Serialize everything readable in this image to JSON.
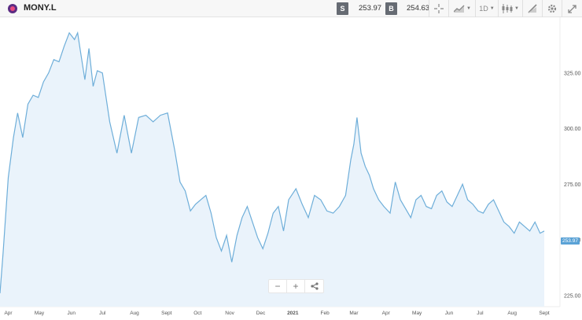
{
  "toolbar": {
    "symbol": "MONY.L",
    "sell_label": "S",
    "sell_price": "253.97",
    "buy_label": "B",
    "buy_price": "254.63",
    "icons": [
      "crosshair-icon",
      "chart-type-icon",
      "timeframe-select",
      "candles-icon",
      "draw-icon",
      "settings-icon",
      "fullscreen-icon"
    ],
    "timeframe": "1D"
  },
  "current_price_tag": "253.97",
  "colors": {
    "line": "#6eaed9",
    "fill": "#eaf3fb",
    "badge": "#666b73",
    "tag": "#5aa2d6"
  },
  "zoom_controls": {
    "minus": "−",
    "plus": "+",
    "share_icon": "share-icon"
  },
  "chart_data": {
    "type": "area",
    "title": "",
    "xlabel": "",
    "ylabel": "",
    "ylim": [
      220,
      350
    ],
    "y_ticks": [
      "325.00",
      "300.00",
      "275.00",
      "250.00",
      "225.00"
    ],
    "x_ticks": [
      "Apr",
      "May",
      "Jun",
      "Jul",
      "Aug",
      "Sept",
      "Oct",
      "Nov",
      "Dec",
      "2021",
      "Feb",
      "Mar",
      "Apr",
      "May",
      "Jun",
      "Jul",
      "Aug",
      "Sept"
    ],
    "x": [
      "2020-03-24",
      "2020-03-27",
      "2020-04-01",
      "2020-04-06",
      "2020-04-10",
      "2020-04-15",
      "2020-04-20",
      "2020-04-25",
      "2020-04-30",
      "2020-05-05",
      "2020-05-10",
      "2020-05-15",
      "2020-05-20",
      "2020-05-25",
      "2020-05-30",
      "2020-06-04",
      "2020-06-07",
      "2020-06-10",
      "2020-06-14",
      "2020-06-18",
      "2020-06-22",
      "2020-06-26",
      "2020-07-01",
      "2020-07-08",
      "2020-07-15",
      "2020-07-22",
      "2020-07-29",
      "2020-08-05",
      "2020-08-12",
      "2020-08-19",
      "2020-08-26",
      "2020-09-02",
      "2020-09-09",
      "2020-09-14",
      "2020-09-19",
      "2020-09-24",
      "2020-09-29",
      "2020-10-04",
      "2020-10-09",
      "2020-10-14",
      "2020-10-19",
      "2020-10-24",
      "2020-10-29",
      "2020-11-03",
      "2020-11-08",
      "2020-11-13",
      "2020-11-18",
      "2020-11-23",
      "2020-11-28",
      "2020-12-03",
      "2020-12-08",
      "2020-12-13",
      "2020-12-18",
      "2020-12-23",
      "2020-12-28",
      "2021-01-04",
      "2021-01-10",
      "2021-01-16",
      "2021-01-22",
      "2021-01-28",
      "2021-02-03",
      "2021-02-09",
      "2021-02-15",
      "2021-02-21",
      "2021-02-26",
      "2021-03-01",
      "2021-03-04",
      "2021-03-08",
      "2021-03-12",
      "2021-03-16",
      "2021-03-20",
      "2021-03-25",
      "2021-03-30",
      "2021-04-05",
      "2021-04-10",
      "2021-04-15",
      "2021-04-20",
      "2021-04-25",
      "2021-04-30",
      "2021-05-05",
      "2021-05-10",
      "2021-05-15",
      "2021-05-20",
      "2021-05-25",
      "2021-05-30",
      "2021-06-04",
      "2021-06-09",
      "2021-06-14",
      "2021-06-19",
      "2021-06-24",
      "2021-06-29",
      "2021-07-04",
      "2021-07-09",
      "2021-07-14",
      "2021-07-19",
      "2021-07-24",
      "2021-07-29",
      "2021-08-03",
      "2021-08-08",
      "2021-08-13",
      "2021-08-18",
      "2021-08-23",
      "2021-08-28",
      "2021-09-01"
    ],
    "series": [
      {
        "values": [
          226,
          244,
          278,
          296,
          307,
          296,
          311,
          315,
          314,
          321,
          325,
          331,
          330,
          337,
          343,
          340,
          343,
          334,
          322,
          336,
          319,
          326,
          325,
          303,
          289,
          306,
          289,
          305,
          306,
          303,
          306,
          307,
          290,
          276,
          272,
          263,
          266,
          268,
          270,
          262,
          251,
          245,
          252,
          240,
          252,
          260,
          265,
          258,
          251,
          246,
          253,
          262,
          265,
          254,
          268,
          273,
          266,
          260,
          270,
          268,
          263,
          262,
          265,
          270,
          286,
          293,
          305,
          289,
          283,
          279,
          273,
          268,
          265,
          262,
          276,
          268,
          264,
          260,
          268,
          270,
          265,
          264,
          270,
          272,
          267,
          265,
          270,
          275,
          268,
          266,
          263,
          262,
          266,
          268,
          263,
          258,
          256,
          253,
          258,
          256,
          254,
          258,
          253,
          254
        ]
      }
    ],
    "grid": false,
    "legend": "none"
  }
}
